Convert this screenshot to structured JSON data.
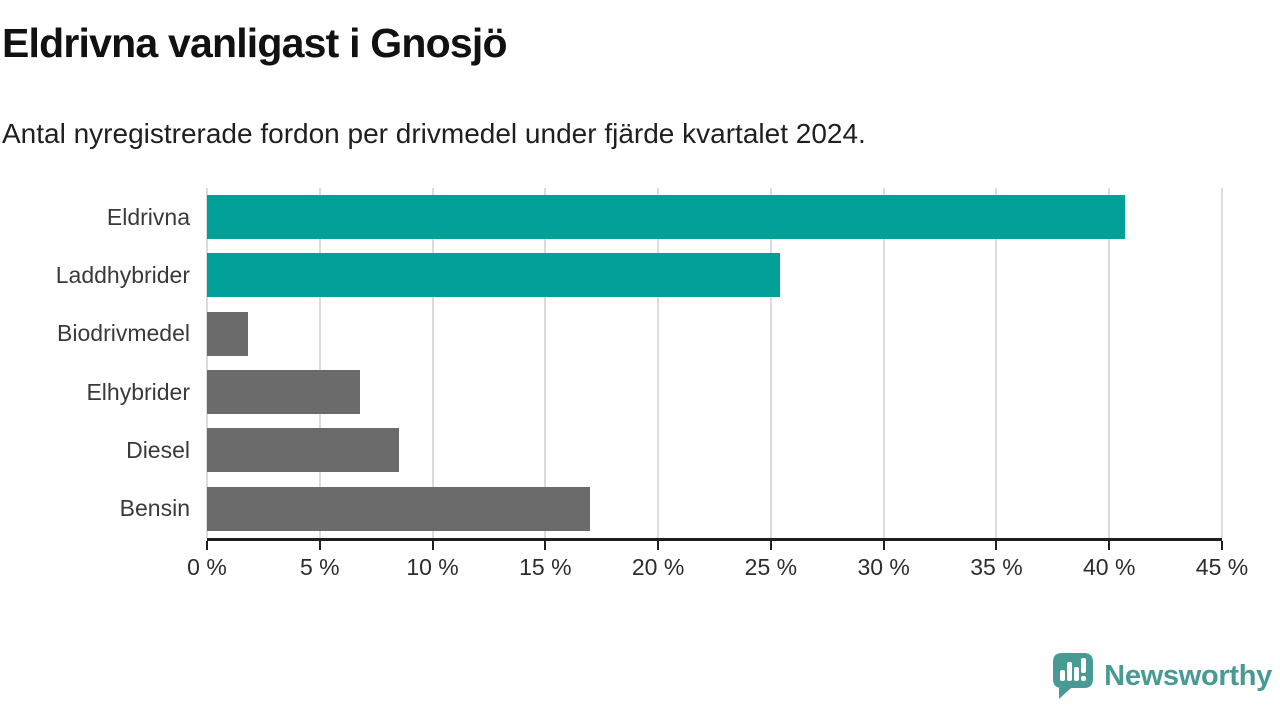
{
  "header": {
    "title": "Eldrivna vanligast i Gnosjö",
    "subtitle": "Antal nyregistrerade fordon per drivmedel under fjärde kvartalet 2024."
  },
  "chart_data": {
    "type": "bar",
    "orientation": "horizontal",
    "title": "Eldrivna vanligast i Gnosjö",
    "xlabel": "",
    "ylabel": "",
    "categories": [
      "Eldrivna",
      "Laddhybrider",
      "Biodrivmedel",
      "Elhybrider",
      "Diesel",
      "Bensin"
    ],
    "values": [
      40.7,
      25.4,
      1.8,
      6.8,
      8.5,
      17.0
    ],
    "unit": "%",
    "xlim": [
      0,
      45
    ],
    "x_ticks": [
      0,
      5,
      10,
      15,
      20,
      25,
      30,
      35,
      40,
      45
    ],
    "x_tick_labels": [
      "0 %",
      "5 %",
      "10 %",
      "15 %",
      "20 %",
      "25 %",
      "30 %",
      "35 %",
      "40 %",
      "45 %"
    ],
    "grid": "vertical",
    "legend": "none",
    "bar_colors": [
      "#00a099",
      "#00a099",
      "#6b6b6b",
      "#6b6b6b",
      "#6b6b6b",
      "#6b6b6b"
    ]
  },
  "colors": {
    "accent_teal": "#00a099",
    "bar_gray": "#6b6b6b",
    "gridline": "#dcdcdc",
    "axis": "#1f1f1f",
    "logo_teal": "#489a94"
  },
  "footer": {
    "brand": "Newsworthy",
    "logo_icon": "newsworthy-speech-bubble-bar-chart-icon"
  }
}
